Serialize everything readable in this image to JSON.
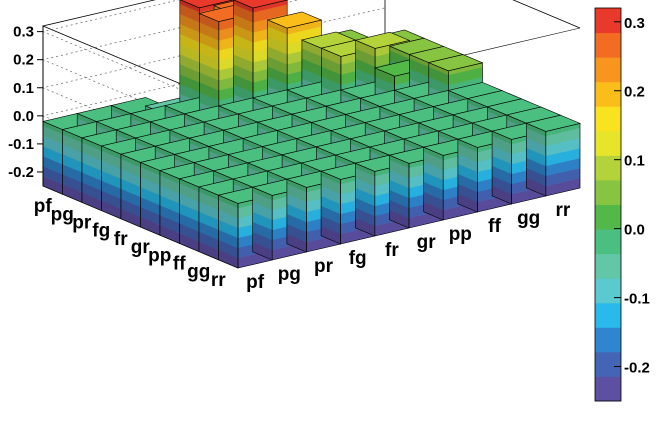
{
  "chart_data": {
    "type": "heatmap",
    "style": "3D lego bar plot (TH2 LEGO2Z)",
    "title": "",
    "xlabel": "",
    "ylabel": "",
    "x_categories": [
      "pf",
      "pg",
      "pr",
      "fg",
      "fr",
      "gr",
      "pp",
      "ff",
      "gg",
      "rr"
    ],
    "y_categories": [
      "rr",
      "gg",
      "ff",
      "pp",
      "gr",
      "fr",
      "fg",
      "pr",
      "pg",
      "pf"
    ],
    "zlim": [
      -0.25,
      0.32
    ],
    "z_axis_ticks": [
      "-0.2",
      "-0.1",
      "0.0",
      "0.1",
      "0.2",
      "0.3"
    ],
    "colorbar": {
      "range": [
        -0.25,
        0.32
      ],
      "ticks": [
        "-0.2",
        "-0.1",
        "0.0",
        "0.1",
        "0.2",
        "0.3"
      ],
      "palette": [
        "#5d4fa2",
        "#4464b5",
        "#2f86d0",
        "#29b9ea",
        "#5ac9d0",
        "#63c6a7",
        "#4bbf7f",
        "#52b848",
        "#86c441",
        "#b4d33b",
        "#e6e52a",
        "#f9e21e",
        "#fbbd1a",
        "#f7951e",
        "#f26d22",
        "#e9392a"
      ]
    },
    "values": [
      [
        -0.02,
        -0.02,
        -0.02,
        -0.02,
        -0.02,
        -0.02,
        -0.02,
        -0.02,
        -0.02,
        -0.02
      ],
      [
        -0.02,
        -0.02,
        -0.02,
        -0.02,
        -0.02,
        -0.02,
        -0.02,
        -0.02,
        -0.02,
        -0.02
      ],
      [
        -0.02,
        -0.02,
        -0.02,
        -0.02,
        -0.02,
        -0.02,
        -0.02,
        -0.02,
        -0.02,
        -0.02
      ],
      [
        -0.02,
        -0.02,
        -0.02,
        -0.02,
        -0.02,
        -0.02,
        -0.02,
        -0.02,
        -0.02,
        -0.02
      ],
      [
        -0.02,
        -0.02,
        -0.02,
        -0.02,
        -0.02,
        -0.02,
        -0.02,
        -0.02,
        -0.02,
        -0.02
      ],
      [
        -0.02,
        -0.02,
        -0.02,
        -0.02,
        -0.02,
        -0.02,
        -0.02,
        -0.02,
        -0.02,
        0.05
      ],
      [
        -0.02,
        -0.02,
        -0.02,
        -0.02,
        -0.02,
        -0.02,
        -0.02,
        -0.02,
        0.03,
        0.05
      ],
      [
        -0.02,
        -0.02,
        -0.02,
        -0.02,
        -0.02,
        -0.02,
        -0.02,
        0.1,
        0.1,
        0.05
      ],
      [
        -0.02,
        -0.02,
        -0.02,
        -0.02,
        0.28,
        0.3,
        0.2,
        0.1,
        0.05,
        0.05
      ],
      [
        -0.02,
        -0.02,
        -0.02,
        -0.05,
        0.3,
        0.25,
        0.15,
        0.05,
        0.05,
        -0.02
      ]
    ]
  }
}
